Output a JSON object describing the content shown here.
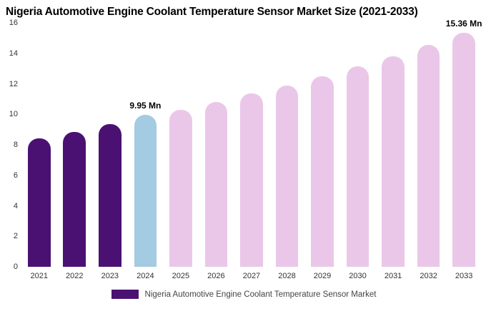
{
  "legend": {
    "label": "Nigeria Automotive Engine Coolant Temperature Sensor Market",
    "swatch_color": "#4b1172"
  },
  "chart_data": {
    "type": "bar",
    "title": "Nigeria Automotive Engine Coolant Temperature Sensor Market Size (2021-2033)",
    "unit": "Mn",
    "categories": [
      "2021",
      "2022",
      "2023",
      "2024",
      "2025",
      "2026",
      "2027",
      "2028",
      "2029",
      "2030",
      "2031",
      "2032",
      "2033"
    ],
    "values": [
      8.4,
      8.85,
      9.35,
      9.95,
      10.3,
      10.8,
      11.35,
      11.9,
      12.5,
      13.15,
      13.8,
      14.55,
      15.36
    ],
    "roles": [
      "historical",
      "historical",
      "historical",
      "current",
      "forecast",
      "forecast",
      "forecast",
      "forecast",
      "forecast",
      "forecast",
      "forecast",
      "forecast",
      "forecast"
    ],
    "bar_colors": {
      "historical": "#4b1172",
      "current": "#a3cbe2",
      "forecast": "#eac7e8"
    },
    "annotations": {
      "2024": "9.95 Mn",
      "2033": "15.36 Mn"
    },
    "xlabel": "",
    "ylabel": "",
    "ylim": [
      0,
      16
    ],
    "yticks": [
      0,
      2,
      4,
      6,
      8,
      10,
      12,
      14,
      16
    ],
    "grid": false,
    "legend_position": "bottom"
  }
}
